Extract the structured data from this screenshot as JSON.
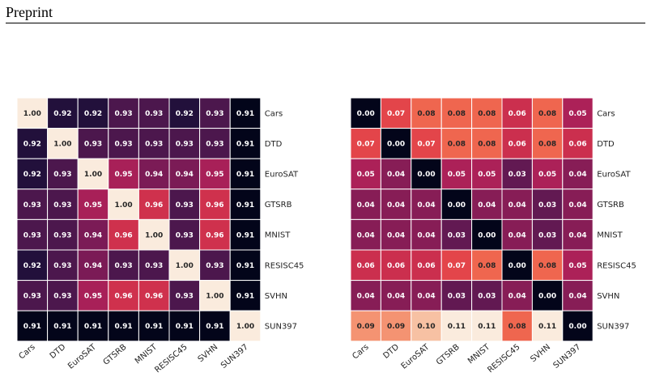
{
  "page": {
    "header_title": "Preprint"
  },
  "chart_data": [
    {
      "type": "heatmap",
      "row_labels": [
        "Cars",
        "DTD",
        "EuroSAT",
        "GTSRB",
        "MNIST",
        "RESISC45",
        "SVHN",
        "SUN397"
      ],
      "col_labels": [
        "Cars",
        "DTD",
        "EuroSAT",
        "GTSRB",
        "MNIST",
        "RESISC45",
        "SVHN",
        "SUN397"
      ],
      "values": [
        [
          1.0,
          0.92,
          0.92,
          0.93,
          0.93,
          0.92,
          0.93,
          0.91
        ],
        [
          0.92,
          1.0,
          0.93,
          0.93,
          0.93,
          0.93,
          0.93,
          0.91
        ],
        [
          0.92,
          0.93,
          1.0,
          0.95,
          0.94,
          0.94,
          0.95,
          0.91
        ],
        [
          0.93,
          0.93,
          0.95,
          1.0,
          0.96,
          0.93,
          0.96,
          0.91
        ],
        [
          0.93,
          0.93,
          0.94,
          0.96,
          1.0,
          0.93,
          0.96,
          0.91
        ],
        [
          0.92,
          0.93,
          0.94,
          0.93,
          0.93,
          1.0,
          0.93,
          0.91
        ],
        [
          0.93,
          0.93,
          0.95,
          0.96,
          0.96,
          0.93,
          1.0,
          0.91
        ],
        [
          0.91,
          0.91,
          0.91,
          0.91,
          0.91,
          0.91,
          0.91,
          1.0
        ]
      ],
      "colormap": "rocket",
      "cell_format": "0.00"
    },
    {
      "type": "heatmap",
      "row_labels": [
        "Cars",
        "DTD",
        "EuroSAT",
        "GTSRB",
        "MNIST",
        "RESISC45",
        "SVHN",
        "SUN397"
      ],
      "col_labels": [
        "Cars",
        "DTD",
        "EuroSAT",
        "GTSRB",
        "MNIST",
        "RESISC45",
        "SVHN",
        "SUN397"
      ],
      "values": [
        [
          0.0,
          0.07,
          0.08,
          0.08,
          0.08,
          0.06,
          0.08,
          0.05
        ],
        [
          0.07,
          0.0,
          0.07,
          0.08,
          0.08,
          0.06,
          0.08,
          0.06
        ],
        [
          0.05,
          0.04,
          0.0,
          0.05,
          0.05,
          0.03,
          0.05,
          0.04
        ],
        [
          0.04,
          0.04,
          0.04,
          0.0,
          0.04,
          0.04,
          0.03,
          0.04
        ],
        [
          0.04,
          0.04,
          0.04,
          0.03,
          0.0,
          0.04,
          0.03,
          0.04
        ],
        [
          0.06,
          0.06,
          0.06,
          0.07,
          0.08,
          0.0,
          0.08,
          0.05
        ],
        [
          0.04,
          0.04,
          0.04,
          0.03,
          0.03,
          0.04,
          0.0,
          0.04
        ],
        [
          0.09,
          0.09,
          0.1,
          0.11,
          0.11,
          0.08,
          0.11,
          0.0
        ]
      ],
      "colormap": "rocket",
      "cell_format": "0.00"
    }
  ]
}
